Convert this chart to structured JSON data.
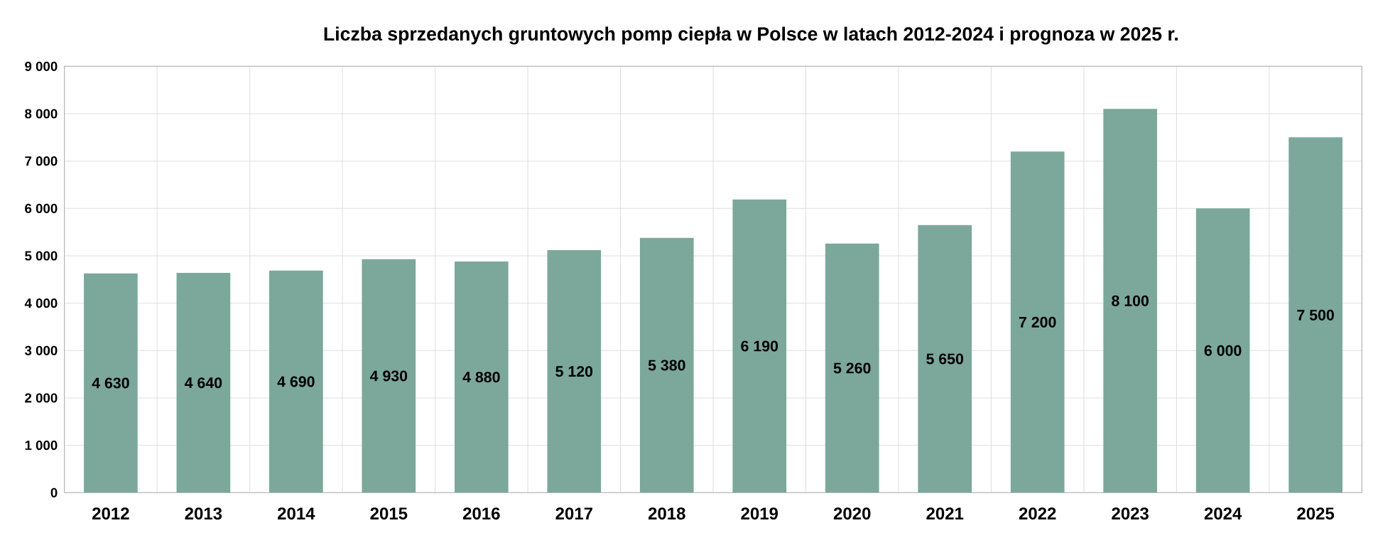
{
  "chart_data": {
    "type": "bar",
    "title": "Liczba sprzedanych gruntowych pomp ciepła w Polsce w latach 2012-2024 i prognoza w 2025 r.",
    "categories": [
      "2012",
      "2013",
      "2014",
      "2015",
      "2016",
      "2017",
      "2018",
      "2019",
      "2020",
      "2021",
      "2022",
      "2023",
      "2024",
      "2025"
    ],
    "values": [
      4630,
      4640,
      4690,
      4930,
      4880,
      5120,
      5380,
      6190,
      5260,
      5650,
      7200,
      8100,
      6000,
      7500
    ],
    "value_labels": [
      "4 630",
      "4 640",
      "4 690",
      "4 930",
      "4 880",
      "5 120",
      "5 380",
      "6 190",
      "5 260",
      "5 650",
      "7 200",
      "8 100",
      "6 000",
      "7 500"
    ],
    "color": "#7ba89b",
    "ylim": [
      0,
      9000
    ],
    "yticks": [
      {
        "value": 0,
        "label": "0"
      },
      {
        "value": 1000,
        "label": "1 000"
      },
      {
        "value": 2000,
        "label": "2 000"
      },
      {
        "value": 3000,
        "label": "3 000"
      },
      {
        "value": 4000,
        "label": "4 000"
      },
      {
        "value": 5000,
        "label": "5 000"
      },
      {
        "value": 6000,
        "label": "6 000"
      },
      {
        "value": 7000,
        "label": "7 000"
      },
      {
        "value": 8000,
        "label": "8 000"
      },
      {
        "value": 9000,
        "label": "9 000"
      }
    ],
    "grid": true
  }
}
